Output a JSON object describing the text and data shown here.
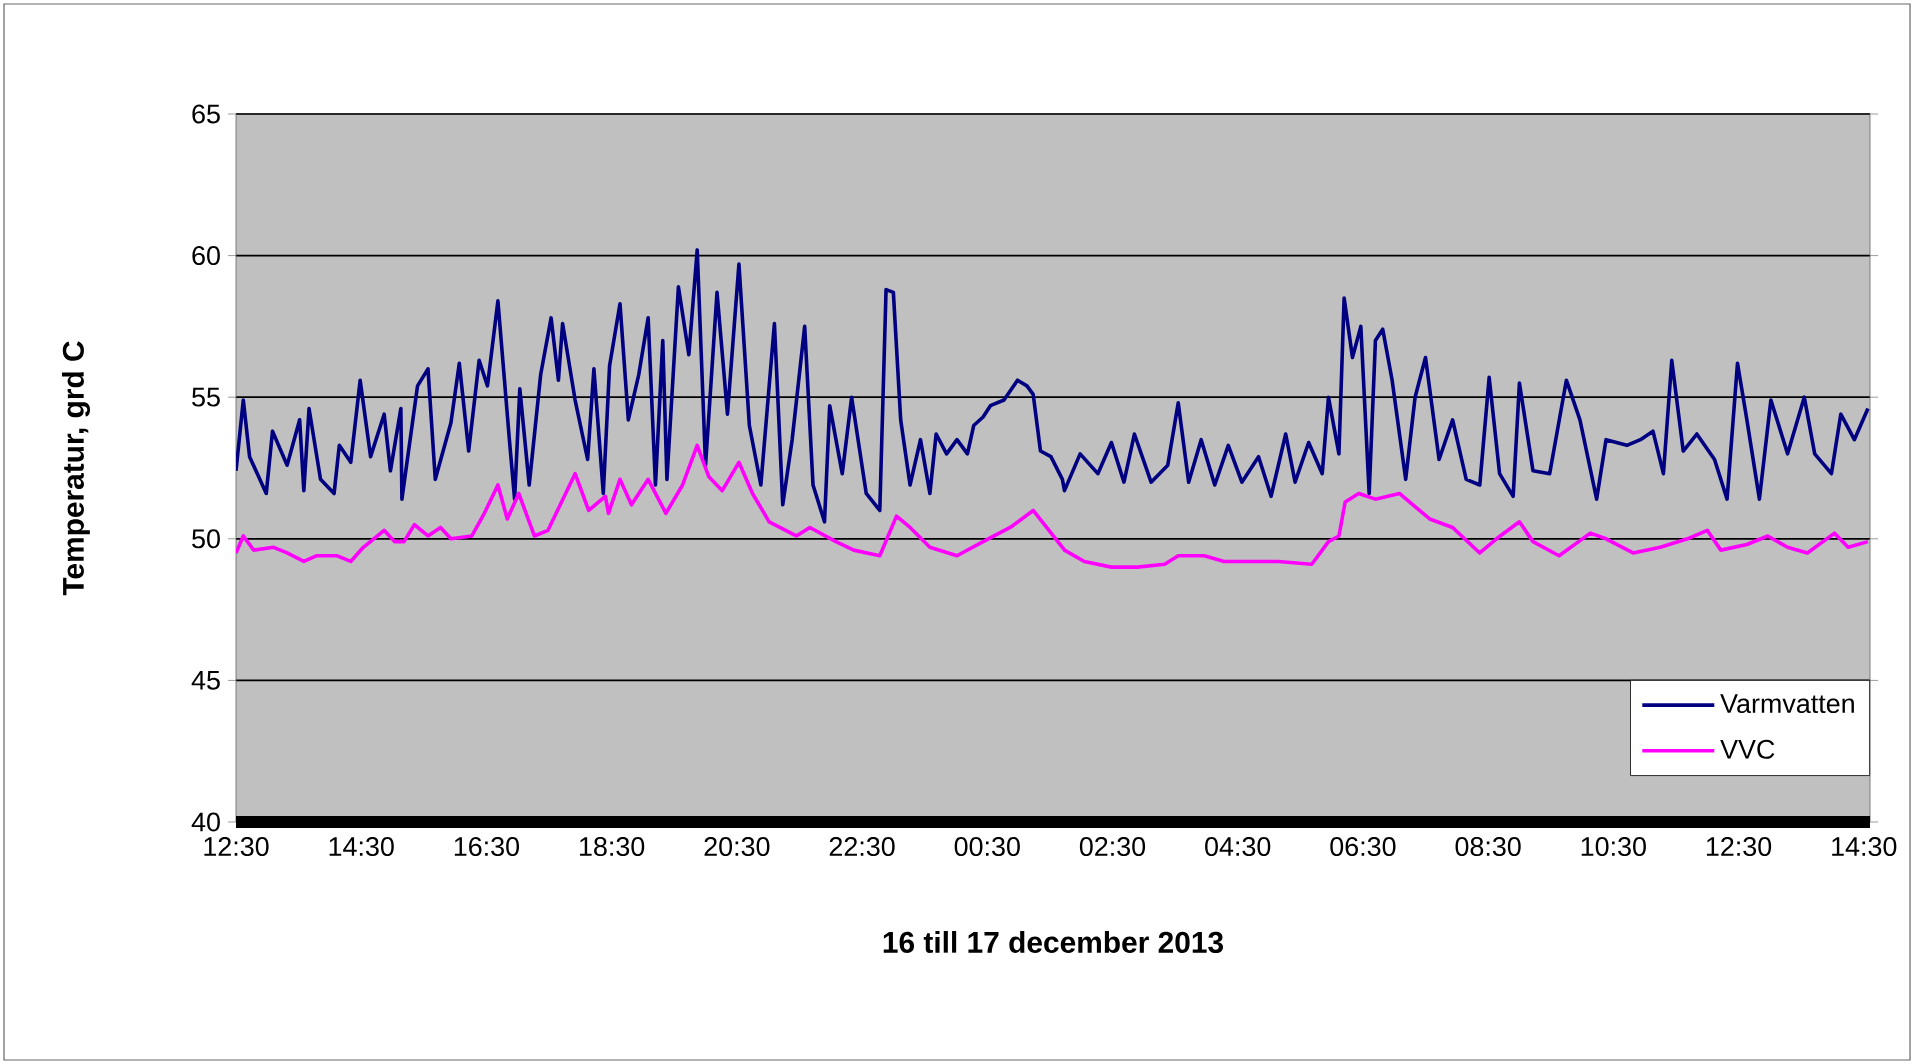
{
  "chart_data": {
    "type": "line",
    "xlabel": "16 till 17 december 2013",
    "ylabel": "Temperatur, grd C",
    "xlim": [
      "2013-12-16T12:30",
      "2013-12-17T14:36"
    ],
    "ylim": [
      40,
      65
    ],
    "yticks": [
      40,
      45,
      50,
      55,
      60,
      65
    ],
    "xticks": [
      {
        "value": "2013-12-16T12:30",
        "label": "12:30"
      },
      {
        "value": "2013-12-16T14:30",
        "label": "14:30"
      },
      {
        "value": "2013-12-16T16:30",
        "label": "16:30"
      },
      {
        "value": "2013-12-16T18:30",
        "label": "18:30"
      },
      {
        "value": "2013-12-16T20:30",
        "label": "20:30"
      },
      {
        "value": "2013-12-16T22:30",
        "label": "22:30"
      },
      {
        "value": "2013-12-17T00:30",
        "label": "00:30"
      },
      {
        "value": "2013-12-17T02:30",
        "label": "02:30"
      },
      {
        "value": "2013-12-17T04:30",
        "label": "04:30"
      },
      {
        "value": "2013-12-17T06:30",
        "label": "06:30"
      },
      {
        "value": "2013-12-17T08:30",
        "label": "08:30"
      },
      {
        "value": "2013-12-17T10:30",
        "label": "10:30"
      },
      {
        "value": "2013-12-17T12:30",
        "label": "12:30"
      },
      {
        "value": "2013-12-17T14:30",
        "label": "14:30"
      }
    ],
    "grid": "y",
    "legend": "bottom right",
    "marker": "none",
    "line_style": "solid",
    "series": [
      {
        "name": "Varmvatten",
        "color": "#000080",
        "x": [
          "2013-12-16T12:30",
          "2013-12-16T12:37",
          "2013-12-16T12:43",
          "2013-12-16T12:59",
          "2013-12-16T13:05",
          "2013-12-16T13:19",
          "2013-12-16T13:31",
          "2013-12-16T13:35",
          "2013-12-16T13:40",
          "2013-12-16T13:51",
          "2013-12-16T14:04",
          "2013-12-16T14:09",
          "2013-12-16T14:20",
          "2013-12-16T14:29",
          "2013-12-16T14:39",
          "2013-12-16T14:52",
          "2013-12-16T14:58",
          "2013-12-16T15:08",
          "2013-12-16T15:09",
          "2013-12-16T15:24",
          "2013-12-16T15:34",
          "2013-12-16T15:41",
          "2013-12-16T15:56",
          "2013-12-16T16:04",
          "2013-12-16T16:13",
          "2013-12-16T16:23",
          "2013-12-16T16:31",
          "2013-12-16T16:41",
          "2013-12-16T16:52",
          "2013-12-16T16:57",
          "2013-12-16T17:02",
          "2013-12-16T17:11",
          "2013-12-16T17:22",
          "2013-12-16T17:32",
          "2013-12-16T17:39",
          "2013-12-16T17:43",
          "2013-12-16T17:55",
          "2013-12-16T18:07",
          "2013-12-16T18:13",
          "2013-12-16T18:22",
          "2013-12-16T18:28",
          "2013-12-16T18:38",
          "2013-12-16T18:46",
          "2013-12-16T18:56",
          "2013-12-16T19:05",
          "2013-12-16T19:12",
          "2013-12-16T19:19",
          "2013-12-16T19:23",
          "2013-12-16T19:34",
          "2013-12-16T19:44",
          "2013-12-16T19:52",
          "2013-12-16T20:00",
          "2013-12-16T20:11",
          "2013-12-16T20:21",
          "2013-12-16T20:32",
          "2013-12-16T20:42",
          "2013-12-16T20:53",
          "2013-12-16T21:06",
          "2013-12-16T21:14",
          "2013-12-16T21:23",
          "2013-12-16T21:35",
          "2013-12-16T21:43",
          "2013-12-16T21:54",
          "2013-12-16T21:59",
          "2013-12-16T22:11",
          "2013-12-16T22:20",
          "2013-12-16T22:34",
          "2013-12-16T22:47",
          "2013-12-16T22:53",
          "2013-12-16T23:00",
          "2013-12-16T23:07",
          "2013-12-16T23:16",
          "2013-12-16T23:26",
          "2013-12-16T23:35",
          "2013-12-16T23:41",
          "2013-12-16T23:51",
          "2013-12-17T00:01",
          "2013-12-17T00:11",
          "2013-12-17T00:17",
          "2013-12-17T00:26",
          "2013-12-17T00:33",
          "2013-12-17T00:46",
          "2013-12-17T00:59",
          "2013-12-17T01:08",
          "2013-12-17T01:14",
          "2013-12-17T01:21",
          "2013-12-17T01:31",
          "2013-12-17T01:42",
          "2013-12-17T01:44",
          "2013-12-17T01:59",
          "2013-12-17T02:16",
          "2013-12-17T02:29",
          "2013-12-17T02:41",
          "2013-12-17T02:51",
          "2013-12-17T03:07",
          "2013-12-17T03:23",
          "2013-12-17T03:33",
          "2013-12-17T03:43",
          "2013-12-17T03:55",
          "2013-12-17T04:08",
          "2013-12-17T04:21",
          "2013-12-17T04:34",
          "2013-12-17T04:50",
          "2013-12-17T05:02",
          "2013-12-17T05:16",
          "2013-12-17T05:25",
          "2013-12-17T05:38",
          "2013-12-17T05:51",
          "2013-12-17T05:57",
          "2013-12-17T06:07",
          "2013-12-17T06:12",
          "2013-12-17T06:20",
          "2013-12-17T06:28",
          "2013-12-17T06:36",
          "2013-12-17T06:42",
          "2013-12-17T06:49",
          "2013-12-17T06:58",
          "2013-12-17T07:11",
          "2013-12-17T07:20",
          "2013-12-17T07:30",
          "2013-12-17T07:43",
          "2013-12-17T07:56",
          "2013-12-17T08:09",
          "2013-12-17T08:22",
          "2013-12-17T08:31",
          "2013-12-17T08:41",
          "2013-12-17T08:54",
          "2013-12-17T09:00",
          "2013-12-17T09:13",
          "2013-12-17T09:29",
          "2013-12-17T09:45",
          "2013-12-17T09:58",
          "2013-12-17T10:14",
          "2013-12-17T10:23",
          "2013-12-17T10:43",
          "2013-12-17T10:56",
          "2013-12-17T11:08",
          "2013-12-17T11:18",
          "2013-12-17T11:26",
          "2013-12-17T11:37",
          "2013-12-17T11:50",
          "2013-12-17T12:07",
          "2013-12-17T12:19",
          "2013-12-17T12:29",
          "2013-12-17T12:38",
          "2013-12-17T12:50",
          "2013-12-17T13:01",
          "2013-12-17T13:17",
          "2013-12-17T13:33",
          "2013-12-17T13:43",
          "2013-12-17T13:59",
          "2013-12-17T14:08",
          "2013-12-17T14:21",
          "2013-12-17T14:34"
        ],
        "values": [
          52.4,
          54.9,
          52.9,
          51.6,
          53.8,
          52.6,
          54.2,
          51.7,
          54.6,
          52.1,
          51.6,
          53.3,
          52.7,
          55.6,
          52.9,
          54.4,
          52.4,
          54.6,
          51.4,
          55.4,
          56.0,
          52.1,
          54.1,
          56.2,
          53.1,
          56.3,
          55.4,
          58.4,
          53.5,
          51.4,
          55.3,
          51.9,
          55.8,
          57.8,
          55.6,
          57.6,
          54.9,
          52.8,
          56.0,
          51.6,
          56.1,
          58.3,
          54.2,
          55.8,
          57.8,
          51.9,
          57.0,
          52.1,
          58.9,
          56.5,
          60.2,
          52.6,
          58.7,
          54.4,
          59.7,
          54.0,
          51.9,
          57.6,
          51.2,
          53.5,
          57.5,
          51.9,
          50.6,
          54.7,
          52.3,
          55.0,
          51.6,
          51.0,
          58.8,
          58.7,
          54.2,
          51.9,
          53.5,
          51.6,
          53.7,
          53.0,
          53.5,
          53.0,
          54.0,
          54.3,
          54.7,
          54.9,
          55.6,
          55.4,
          55.1,
          53.1,
          52.9,
          52.1,
          51.7,
          53.0,
          52.3,
          53.4,
          52.0,
          53.7,
          52.0,
          52.6,
          54.8,
          52.0,
          53.5,
          51.9,
          53.3,
          52.0,
          52.9,
          51.5,
          53.7,
          52.0,
          53.4,
          52.3,
          55.0,
          53.0,
          58.5,
          56.4,
          57.5,
          51.6,
          57.0,
          57.4,
          55.6,
          52.1,
          55.0,
          56.4,
          52.8,
          54.2,
          52.1,
          51.9,
          55.7,
          52.3,
          51.5,
          55.5,
          52.4,
          52.3,
          55.6,
          54.2,
          51.4,
          53.5,
          53.3,
          53.5,
          53.8,
          52.3,
          56.3,
          53.1,
          53.7,
          52.8,
          51.4,
          56.2,
          54.2,
          51.4,
          54.9,
          53.0,
          55.0,
          53.0,
          52.3,
          54.4,
          53.5,
          54.6
        ]
      },
      {
        "name": "VVC",
        "color": "#ff00ff",
        "x": [
          "2013-12-16T12:30",
          "2013-12-16T12:37",
          "2013-12-16T12:47",
          "2013-12-16T13:06",
          "2013-12-16T13:19",
          "2013-12-16T13:35",
          "2013-12-16T13:47",
          "2013-12-16T14:07",
          "2013-12-16T14:20",
          "2013-12-16T14:32",
          "2013-12-16T14:52",
          "2013-12-16T15:02",
          "2013-12-16T15:11",
          "2013-12-16T15:21",
          "2013-12-16T15:34",
          "2013-12-16T15:46",
          "2013-12-16T15:56",
          "2013-12-16T16:16",
          "2013-12-16T16:28",
          "2013-12-16T16:41",
          "2013-12-16T16:50",
          "2013-12-16T17:01",
          "2013-12-16T17:16",
          "2013-12-16T17:29",
          "2013-12-16T17:55",
          "2013-12-16T18:08",
          "2013-12-16T18:24",
          "2013-12-16T18:27",
          "2013-12-16T18:38",
          "2013-12-16T18:49",
          "2013-12-16T19:05",
          "2013-12-16T19:22",
          "2013-12-16T19:38",
          "2013-12-16T19:52",
          "2013-12-16T20:03",
          "2013-12-16T20:16",
          "2013-12-16T20:32",
          "2013-12-16T20:45",
          "2013-12-16T21:01",
          "2013-12-16T21:27",
          "2013-12-16T21:40",
          "2013-12-16T22:05",
          "2013-12-16T22:22",
          "2013-12-16T22:47",
          "2013-12-16T23:03",
          "2013-12-16T23:16",
          "2013-12-16T23:35",
          "2013-12-17T00:01",
          "2013-12-17T00:26",
          "2013-12-17T00:52",
          "2013-12-17T01:14",
          "2013-12-17T01:42",
          "2013-12-17T01:44",
          "2013-12-17T02:03",
          "2013-12-17T02:29",
          "2013-12-17T02:54",
          "2013-12-17T03:20",
          "2013-12-17T03:33",
          "2013-12-17T03:58",
          "2013-12-17T04:17",
          "2013-12-17T04:43",
          "2013-12-17T05:09",
          "2013-12-17T05:41",
          "2013-12-17T05:57",
          "2013-12-17T06:07",
          "2013-12-17T06:13",
          "2013-12-17T06:26",
          "2013-12-17T06:42",
          "2013-12-17T07:05",
          "2013-12-17T07:34",
          "2013-12-17T07:56",
          "2013-12-17T08:22",
          "2013-12-17T08:38",
          "2013-12-17T09:00",
          "2013-12-17T09:13",
          "2013-12-17T09:38",
          "2013-12-17T10:08",
          "2013-12-17T10:23",
          "2013-12-17T10:49",
          "2013-12-17T11:15",
          "2013-12-17T11:41",
          "2013-12-17T12:00",
          "2013-12-17T12:13",
          "2013-12-17T12:38",
          "2013-12-17T12:58",
          "2013-12-17T13:17",
          "2013-12-17T13:36",
          "2013-12-17T14:02",
          "2013-12-17T14:15",
          "2013-12-17T14:34"
        ],
        "values": [
          49.5,
          50.1,
          49.6,
          49.7,
          49.5,
          49.2,
          49.4,
          49.4,
          49.2,
          49.7,
          50.3,
          49.9,
          49.9,
          50.5,
          50.1,
          50.4,
          50.0,
          50.1,
          50.9,
          51.9,
          50.7,
          51.6,
          50.1,
          50.3,
          52.3,
          51.0,
          51.5,
          50.9,
          52.1,
          51.2,
          52.1,
          50.9,
          51.9,
          53.3,
          52.2,
          51.7,
          52.7,
          51.6,
          50.6,
          50.1,
          50.4,
          49.9,
          49.6,
          49.4,
          50.8,
          50.4,
          49.7,
          49.4,
          49.9,
          50.4,
          51.0,
          49.7,
          49.6,
          49.2,
          49.0,
          49.0,
          49.1,
          49.4,
          49.4,
          49.2,
          49.2,
          49.2,
          49.1,
          49.9,
          50.1,
          51.3,
          51.6,
          51.4,
          51.6,
          50.7,
          50.4,
          49.5,
          50.0,
          50.6,
          49.9,
          49.4,
          50.2,
          50.0,
          49.5,
          49.7,
          50.0,
          50.3,
          49.6,
          49.8,
          50.1,
          49.7,
          49.5,
          50.2,
          49.7,
          49.9
        ]
      }
    ]
  }
}
